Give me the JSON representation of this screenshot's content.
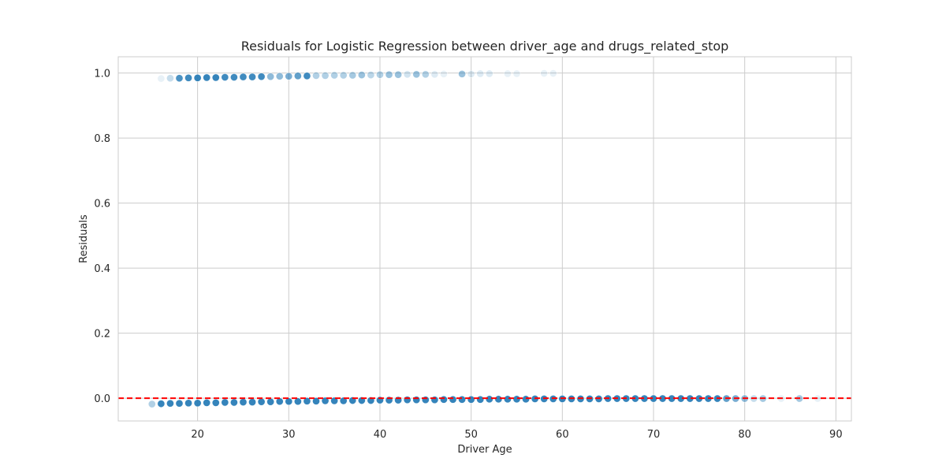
{
  "chart_data": {
    "type": "scatter",
    "title": "Residuals for Logistic Regression between driver_age and drugs_related_stop",
    "xlabel": "Driver Age",
    "ylabel": "Residuals",
    "xlim": [
      11.3,
      91.7
    ],
    "ylim": [
      -0.07,
      1.05
    ],
    "xticks": [
      20,
      30,
      40,
      50,
      60,
      70,
      80,
      90
    ],
    "yticks": [
      0.0,
      0.2,
      0.4,
      0.6,
      0.8,
      1.0
    ],
    "ytick_labels": [
      "0.0",
      "0.2",
      "0.4",
      "0.6",
      "0.8",
      "1.0"
    ],
    "grid": true,
    "point_color": "#1f77b4",
    "reference_line": {
      "y": 0.0,
      "color": "#ff0000",
      "style": "dashed"
    },
    "series": [
      {
        "points": [
          {
            "x": 16,
            "y": 0.983,
            "a": 0.1
          },
          {
            "x": 17,
            "y": 0.984,
            "a": 0.25
          },
          {
            "x": 18,
            "y": 0.984,
            "a": 0.8
          },
          {
            "x": 19,
            "y": 0.985,
            "a": 0.85
          },
          {
            "x": 20,
            "y": 0.985,
            "a": 0.9
          },
          {
            "x": 21,
            "y": 0.986,
            "a": 0.9
          },
          {
            "x": 22,
            "y": 0.986,
            "a": 0.9
          },
          {
            "x": 23,
            "y": 0.987,
            "a": 0.85
          },
          {
            "x": 24,
            "y": 0.987,
            "a": 0.85
          },
          {
            "x": 25,
            "y": 0.988,
            "a": 0.85
          },
          {
            "x": 26,
            "y": 0.988,
            "a": 0.85
          },
          {
            "x": 27,
            "y": 0.989,
            "a": 0.85
          },
          {
            "x": 28,
            "y": 0.989,
            "a": 0.5
          },
          {
            "x": 29,
            "y": 0.99,
            "a": 0.5
          },
          {
            "x": 30,
            "y": 0.99,
            "a": 0.6
          },
          {
            "x": 31,
            "y": 0.991,
            "a": 0.7
          },
          {
            "x": 32,
            "y": 0.991,
            "a": 0.85
          },
          {
            "x": 33,
            "y": 0.992,
            "a": 0.35
          },
          {
            "x": 34,
            "y": 0.992,
            "a": 0.35
          },
          {
            "x": 35,
            "y": 0.993,
            "a": 0.35
          },
          {
            "x": 36,
            "y": 0.993,
            "a": 0.35
          },
          {
            "x": 37,
            "y": 0.993,
            "a": 0.4
          },
          {
            "x": 38,
            "y": 0.994,
            "a": 0.45
          },
          {
            "x": 39,
            "y": 0.994,
            "a": 0.3
          },
          {
            "x": 40,
            "y": 0.995,
            "a": 0.35
          },
          {
            "x": 41,
            "y": 0.995,
            "a": 0.45
          },
          {
            "x": 42,
            "y": 0.995,
            "a": 0.45
          },
          {
            "x": 43,
            "y": 0.996,
            "a": 0.2
          },
          {
            "x": 44,
            "y": 0.996,
            "a": 0.45
          },
          {
            "x": 45,
            "y": 0.996,
            "a": 0.35
          },
          {
            "x": 46,
            "y": 0.996,
            "a": 0.15
          },
          {
            "x": 47,
            "y": 0.997,
            "a": 0.1
          },
          {
            "x": 49,
            "y": 0.997,
            "a": 0.45
          },
          {
            "x": 50,
            "y": 0.997,
            "a": 0.15
          },
          {
            "x": 51,
            "y": 0.998,
            "a": 0.15
          },
          {
            "x": 52,
            "y": 0.998,
            "a": 0.15
          },
          {
            "x": 54,
            "y": 0.998,
            "a": 0.1
          },
          {
            "x": 55,
            "y": 0.998,
            "a": 0.1
          },
          {
            "x": 58,
            "y": 0.999,
            "a": 0.1
          },
          {
            "x": 59,
            "y": 0.999,
            "a": 0.1
          },
          {
            "x": 15,
            "y": -0.018,
            "a": 0.35
          },
          {
            "x": 16,
            "y": -0.017,
            "a": 0.9
          },
          {
            "x": 17,
            "y": -0.016,
            "a": 0.9
          },
          {
            "x": 18,
            "y": -0.016,
            "a": 0.9
          },
          {
            "x": 19,
            "y": -0.015,
            "a": 0.9
          },
          {
            "x": 20,
            "y": -0.015,
            "a": 0.9
          },
          {
            "x": 21,
            "y": -0.014,
            "a": 0.9
          },
          {
            "x": 22,
            "y": -0.014,
            "a": 0.9
          },
          {
            "x": 23,
            "y": -0.013,
            "a": 0.9
          },
          {
            "x": 24,
            "y": -0.013,
            "a": 0.9
          },
          {
            "x": 25,
            "y": -0.012,
            "a": 0.9
          },
          {
            "x": 26,
            "y": -0.012,
            "a": 0.9
          },
          {
            "x": 27,
            "y": -0.011,
            "a": 0.9
          },
          {
            "x": 28,
            "y": -0.011,
            "a": 0.9
          },
          {
            "x": 29,
            "y": -0.01,
            "a": 0.9
          },
          {
            "x": 30,
            "y": -0.01,
            "a": 0.9
          },
          {
            "x": 31,
            "y": -0.01,
            "a": 0.9
          },
          {
            "x": 32,
            "y": -0.009,
            "a": 0.9
          },
          {
            "x": 33,
            "y": -0.009,
            "a": 0.9
          },
          {
            "x": 34,
            "y": -0.008,
            "a": 0.9
          },
          {
            "x": 35,
            "y": -0.008,
            "a": 0.9
          },
          {
            "x": 36,
            "y": -0.008,
            "a": 0.9
          },
          {
            "x": 37,
            "y": -0.007,
            "a": 0.9
          },
          {
            "x": 38,
            "y": -0.007,
            "a": 0.9
          },
          {
            "x": 39,
            "y": -0.007,
            "a": 0.9
          },
          {
            "x": 40,
            "y": -0.006,
            "a": 0.9
          },
          {
            "x": 41,
            "y": -0.006,
            "a": 0.9
          },
          {
            "x": 42,
            "y": -0.006,
            "a": 0.9
          },
          {
            "x": 43,
            "y": -0.005,
            "a": 0.9
          },
          {
            "x": 44,
            "y": -0.005,
            "a": 0.9
          },
          {
            "x": 45,
            "y": -0.005,
            "a": 0.9
          },
          {
            "x": 46,
            "y": -0.005,
            "a": 0.9
          },
          {
            "x": 47,
            "y": -0.004,
            "a": 0.9
          },
          {
            "x": 48,
            "y": -0.004,
            "a": 0.9
          },
          {
            "x": 49,
            "y": -0.004,
            "a": 0.9
          },
          {
            "x": 50,
            "y": -0.004,
            "a": 0.9
          },
          {
            "x": 51,
            "y": -0.004,
            "a": 0.9
          },
          {
            "x": 52,
            "y": -0.003,
            "a": 0.9
          },
          {
            "x": 53,
            "y": -0.003,
            "a": 0.9
          },
          {
            "x": 54,
            "y": -0.003,
            "a": 0.9
          },
          {
            "x": 55,
            "y": -0.003,
            "a": 0.9
          },
          {
            "x": 56,
            "y": -0.003,
            "a": 0.9
          },
          {
            "x": 57,
            "y": -0.002,
            "a": 0.9
          },
          {
            "x": 58,
            "y": -0.002,
            "a": 0.9
          },
          {
            "x": 59,
            "y": -0.002,
            "a": 0.9
          },
          {
            "x": 60,
            "y": -0.002,
            "a": 0.9
          },
          {
            "x": 61,
            "y": -0.002,
            "a": 0.9
          },
          {
            "x": 62,
            "y": -0.002,
            "a": 0.9
          },
          {
            "x": 63,
            "y": -0.002,
            "a": 0.9
          },
          {
            "x": 64,
            "y": -0.002,
            "a": 0.9
          },
          {
            "x": 65,
            "y": -0.001,
            "a": 0.9
          },
          {
            "x": 66,
            "y": -0.001,
            "a": 0.9
          },
          {
            "x": 67,
            "y": -0.001,
            "a": 0.9
          },
          {
            "x": 68,
            "y": -0.001,
            "a": 0.9
          },
          {
            "x": 69,
            "y": -0.001,
            "a": 0.9
          },
          {
            "x": 70,
            "y": -0.001,
            "a": 0.9
          },
          {
            "x": 71,
            "y": -0.001,
            "a": 0.9
          },
          {
            "x": 72,
            "y": -0.001,
            "a": 0.9
          },
          {
            "x": 73,
            "y": -0.001,
            "a": 0.9
          },
          {
            "x": 74,
            "y": -0.001,
            "a": 0.9
          },
          {
            "x": 75,
            "y": -0.001,
            "a": 0.9
          },
          {
            "x": 76,
            "y": -0.001,
            "a": 0.9
          },
          {
            "x": 77,
            "y": -0.001,
            "a": 0.9
          },
          {
            "x": 78,
            "y": -0.001,
            "a": 0.7
          },
          {
            "x": 79,
            "y": -0.001,
            "a": 0.6
          },
          {
            "x": 80,
            "y": -0.001,
            "a": 0.5
          },
          {
            "x": 81,
            "y": -0.001,
            "a": 0.25
          },
          {
            "x": 82,
            "y": -0.001,
            "a": 0.4
          },
          {
            "x": 84,
            "y": -0.001,
            "a": 0.1
          },
          {
            "x": 86,
            "y": -0.001,
            "a": 0.4
          },
          {
            "x": 88,
            "y": -0.001,
            "a": 0.1
          }
        ]
      }
    ]
  }
}
